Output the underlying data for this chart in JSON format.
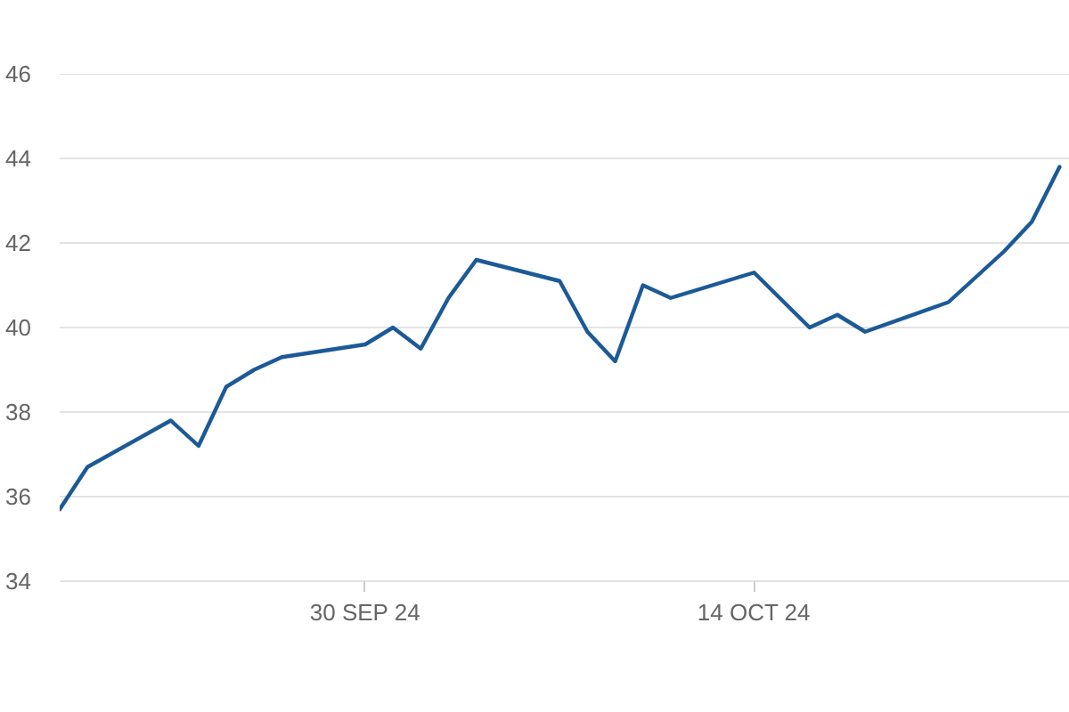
{
  "chart_data": {
    "type": "line",
    "x": [
      "2024-09-19",
      "2024-09-20",
      "2024-09-23",
      "2024-09-24",
      "2024-09-25",
      "2024-09-26",
      "2024-09-27",
      "2024-09-30",
      "2024-10-01",
      "2024-10-02",
      "2024-10-03",
      "2024-10-04",
      "2024-10-07",
      "2024-10-08",
      "2024-10-09",
      "2024-10-10",
      "2024-10-11",
      "2024-10-14",
      "2024-10-16",
      "2024-10-17",
      "2024-10-18",
      "2024-10-21",
      "2024-10-22",
      "2024-10-23",
      "2024-10-24",
      "2024-10-25"
    ],
    "series": [
      {
        "color": "#1c5a97",
        "values": [
          35.7,
          36.7,
          37.8,
          37.2,
          38.6,
          39.0,
          39.3,
          39.6,
          40.0,
          39.5,
          40.7,
          41.6,
          41.1,
          39.9,
          39.2,
          41.0,
          40.7,
          41.3,
          40.0,
          40.3,
          39.9,
          40.6,
          41.2,
          41.8,
          42.5,
          43.8
        ]
      }
    ],
    "xlim": [
      "2024-09-19",
      "2024-10-25T12:00"
    ],
    "xticks": [
      {
        "value": "2024-09-30",
        "label": "30 SEP 24"
      },
      {
        "value": "2024-10-14",
        "label": "14 OCT 24"
      }
    ],
    "ylim": [
      34,
      46
    ],
    "yticks": [
      34,
      36,
      38,
      40,
      42,
      44,
      46
    ],
    "grid": "y",
    "line_style": "solid"
  }
}
